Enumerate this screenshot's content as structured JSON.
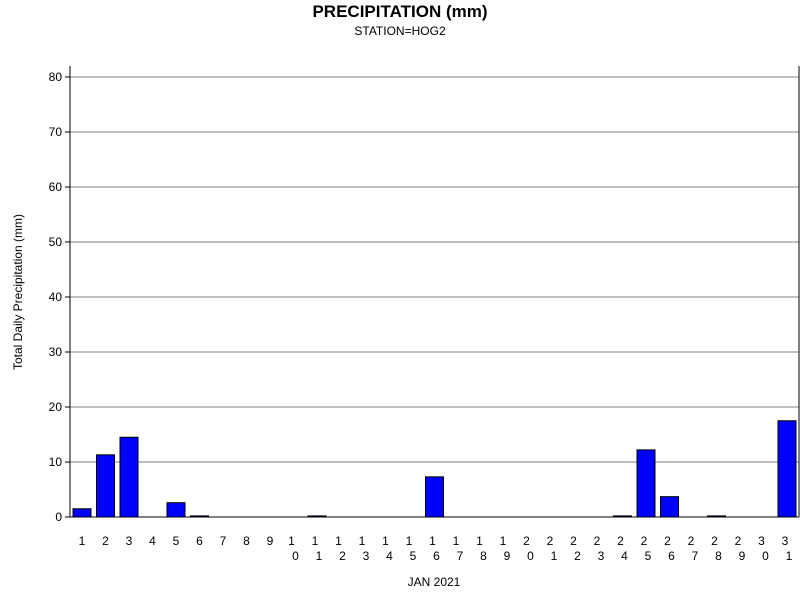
{
  "chart_data": {
    "type": "bar",
    "title": "PRECIPITATION (mm)",
    "subtitle": "STATION=HOG2",
    "xlabel": "JAN 2021",
    "ylabel": "Total Daily Precipitation (mm)",
    "ylim": [
      0,
      80
    ],
    "yticks": [
      0,
      10,
      20,
      30,
      40,
      50,
      60,
      70,
      80
    ],
    "grid": true,
    "categories": [
      "1",
      "2",
      "3",
      "4",
      "5",
      "6",
      "7",
      "8",
      "9",
      "10",
      "11",
      "12",
      "13",
      "14",
      "15",
      "16",
      "17",
      "18",
      "19",
      "20",
      "21",
      "22",
      "23",
      "24",
      "25",
      "26",
      "27",
      "28",
      "29",
      "30",
      "31"
    ],
    "values": [
      1.5,
      11.3,
      14.5,
      0,
      2.6,
      0.2,
      0,
      0,
      0,
      0,
      0.2,
      0,
      0,
      0,
      0,
      7.3,
      0,
      0,
      0,
      0,
      0,
      0,
      0,
      0.2,
      12.2,
      3.7,
      0,
      0.2,
      0,
      0,
      17.5
    ],
    "bar_color": "#0000ff",
    "bar_edge_color": "#000000",
    "grid_color": "#808080"
  }
}
